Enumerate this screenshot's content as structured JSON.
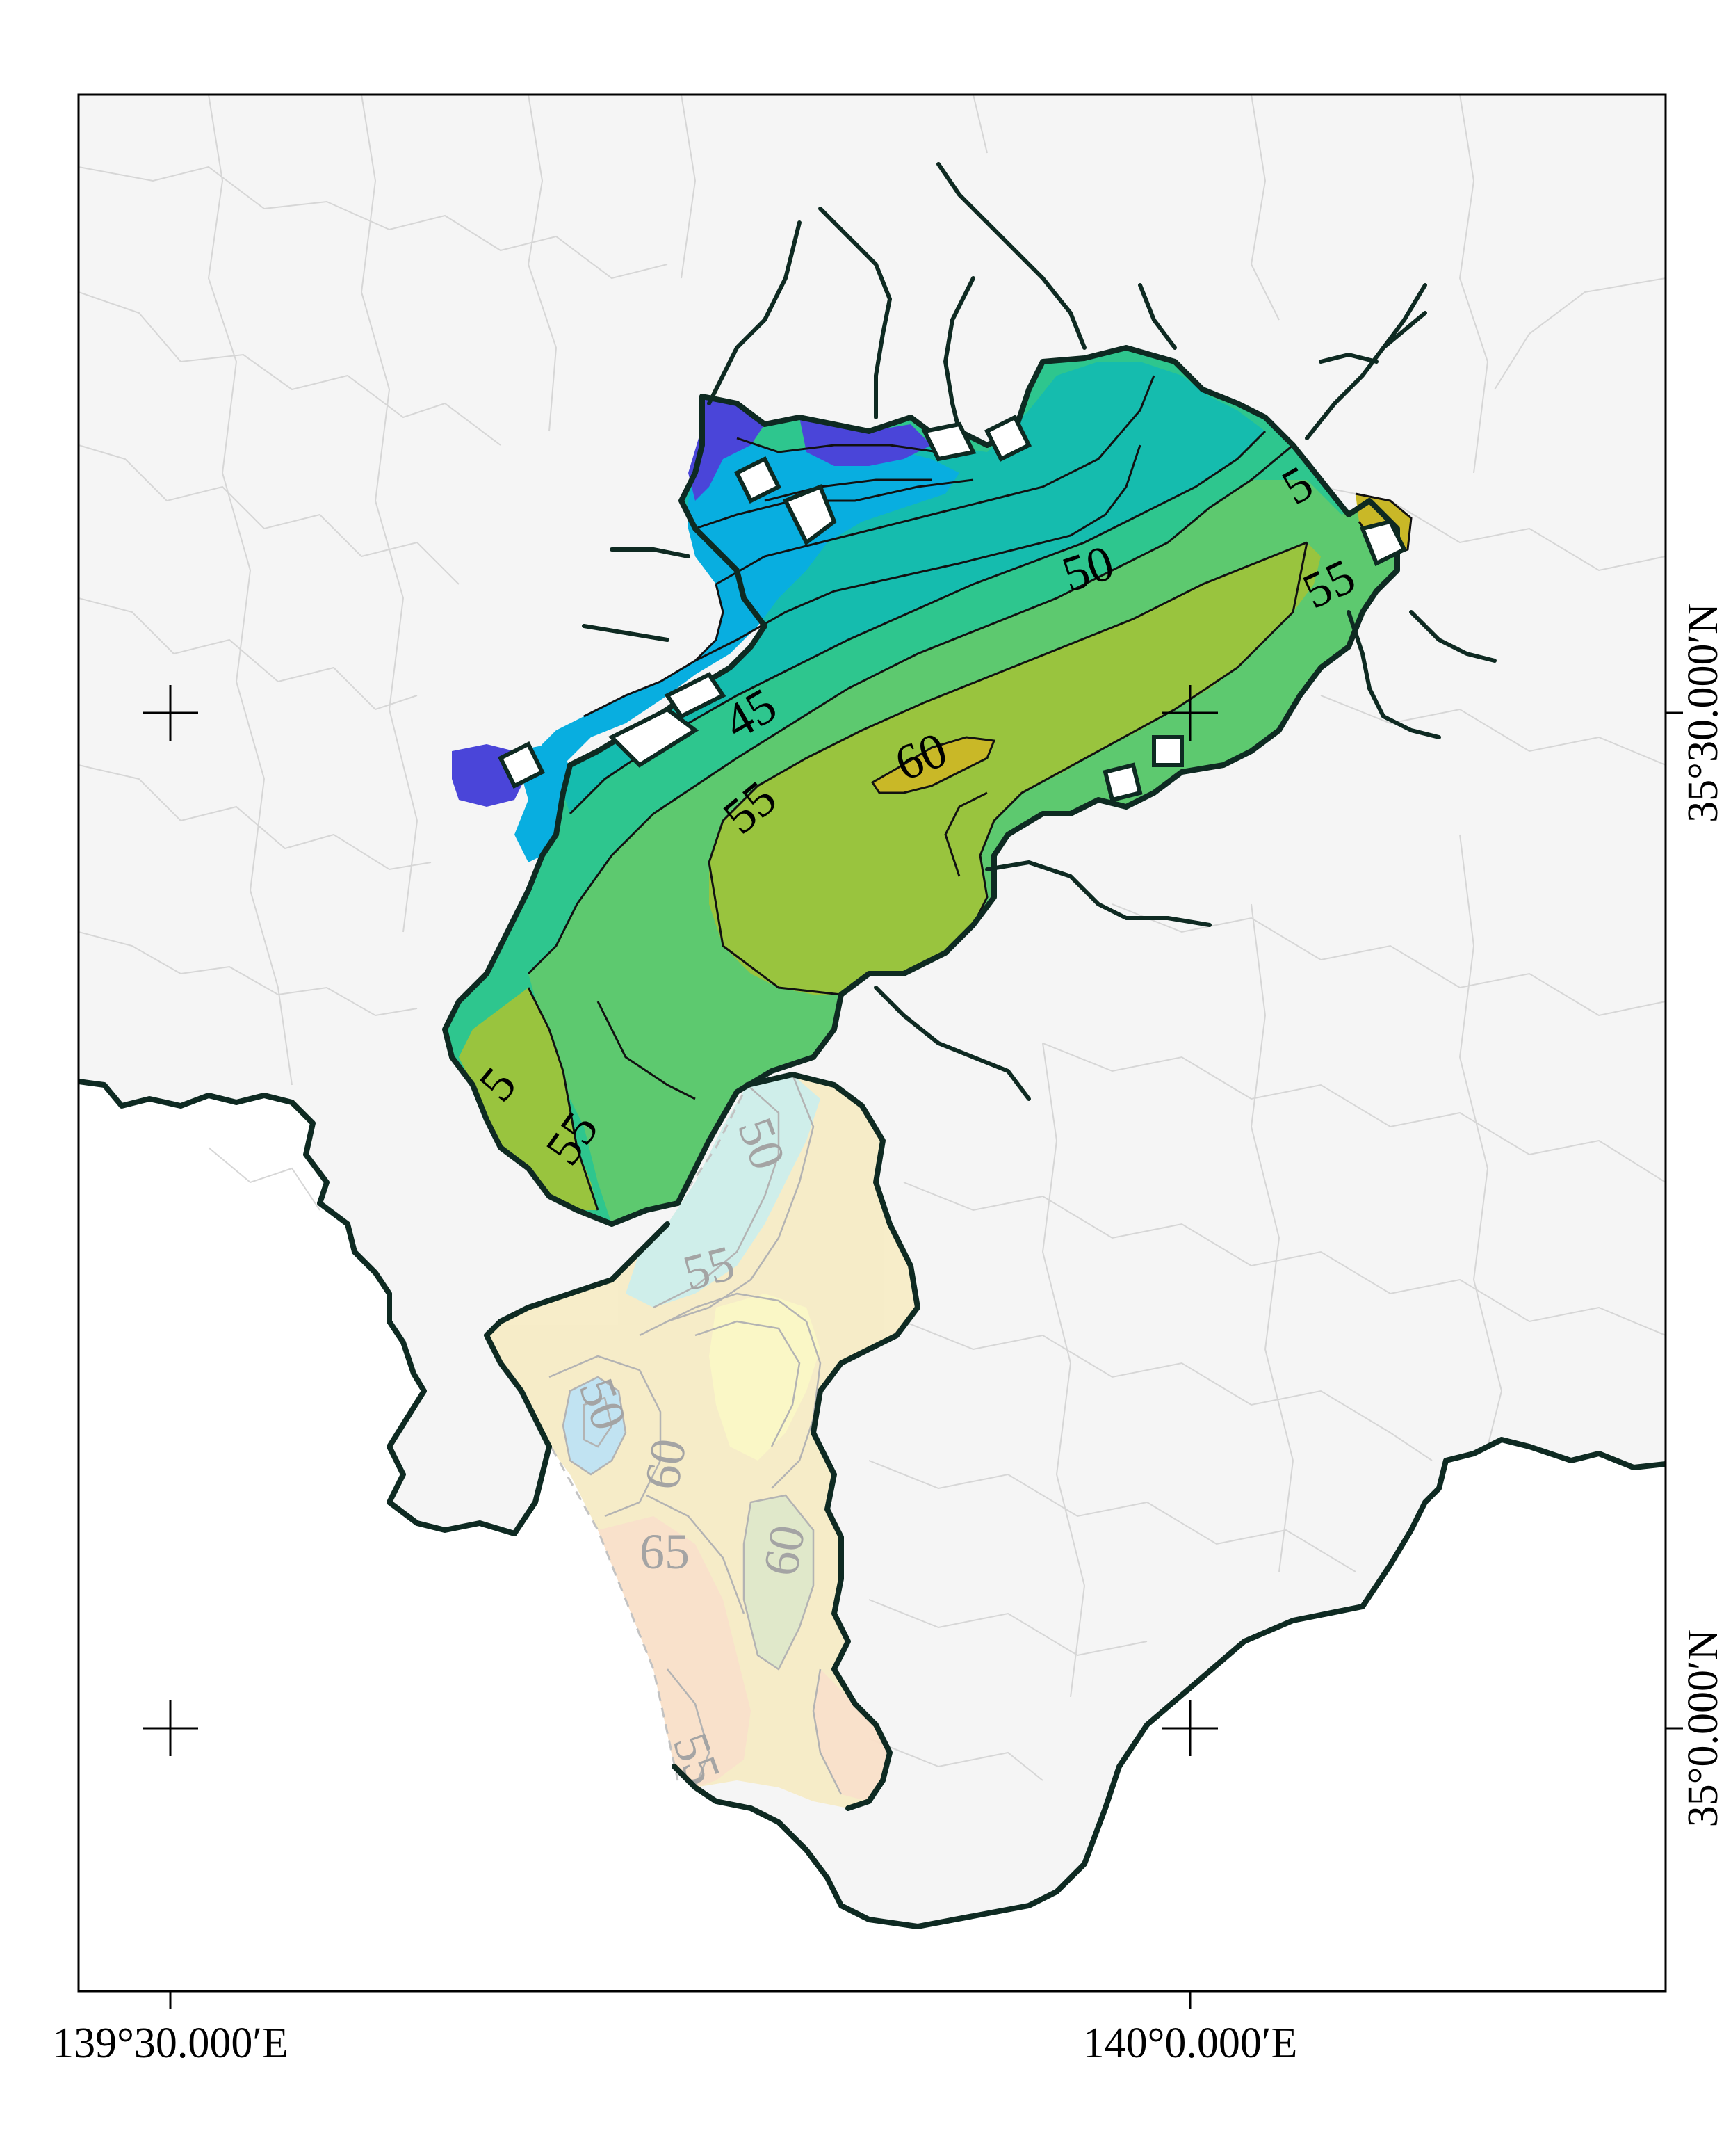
{
  "map": {
    "x_ticks": [
      {
        "label": "139°30.000′E",
        "lon": 139.5
      },
      {
        "label": "140°0.000′E",
        "lon": 140.0
      }
    ],
    "y_ticks": [
      {
        "label": "35°30.000′N",
        "lat": 35.5
      },
      {
        "label": "35°0.000′N",
        "lat": 35.0
      }
    ],
    "contour_labels": {
      "c50_main": "50",
      "c55_center": "55",
      "c60_center": "60",
      "c45_upper": "45",
      "c55_east": "55",
      "c5_east_partial": "5",
      "c55_southwest": "55",
      "c5_southwest_partial": "5"
    },
    "faded_contour_labels": {
      "f50_top": "50",
      "f55_mid": "55",
      "f50_left": "50",
      "f60_mid": "60",
      "f65_mid": "65",
      "f60_right": "60",
      "f55_bottom": "55"
    },
    "colors": {
      "land": "#f5f5f5",
      "sea_outside": "#ffffff",
      "coast": "#0e2a22",
      "admin_border": "#d4d4d4",
      "c_40": "#4a45d9",
      "c_45": "#08aee0",
      "c_50": "#15bcae",
      "c_52": "#2ec68e",
      "c_55": "#5dc96f",
      "c_58": "#99c43e",
      "c_60": "#c9b827",
      "faded_cyan": "#cdeeea",
      "faded_yellow": "#f7ecc6",
      "faded_peach": "#fae0c9",
      "faded_green": "#dfe8c8",
      "faded_bright_yellow": "#fbf8c4",
      "faded_blue": "#bfe3f2"
    }
  }
}
